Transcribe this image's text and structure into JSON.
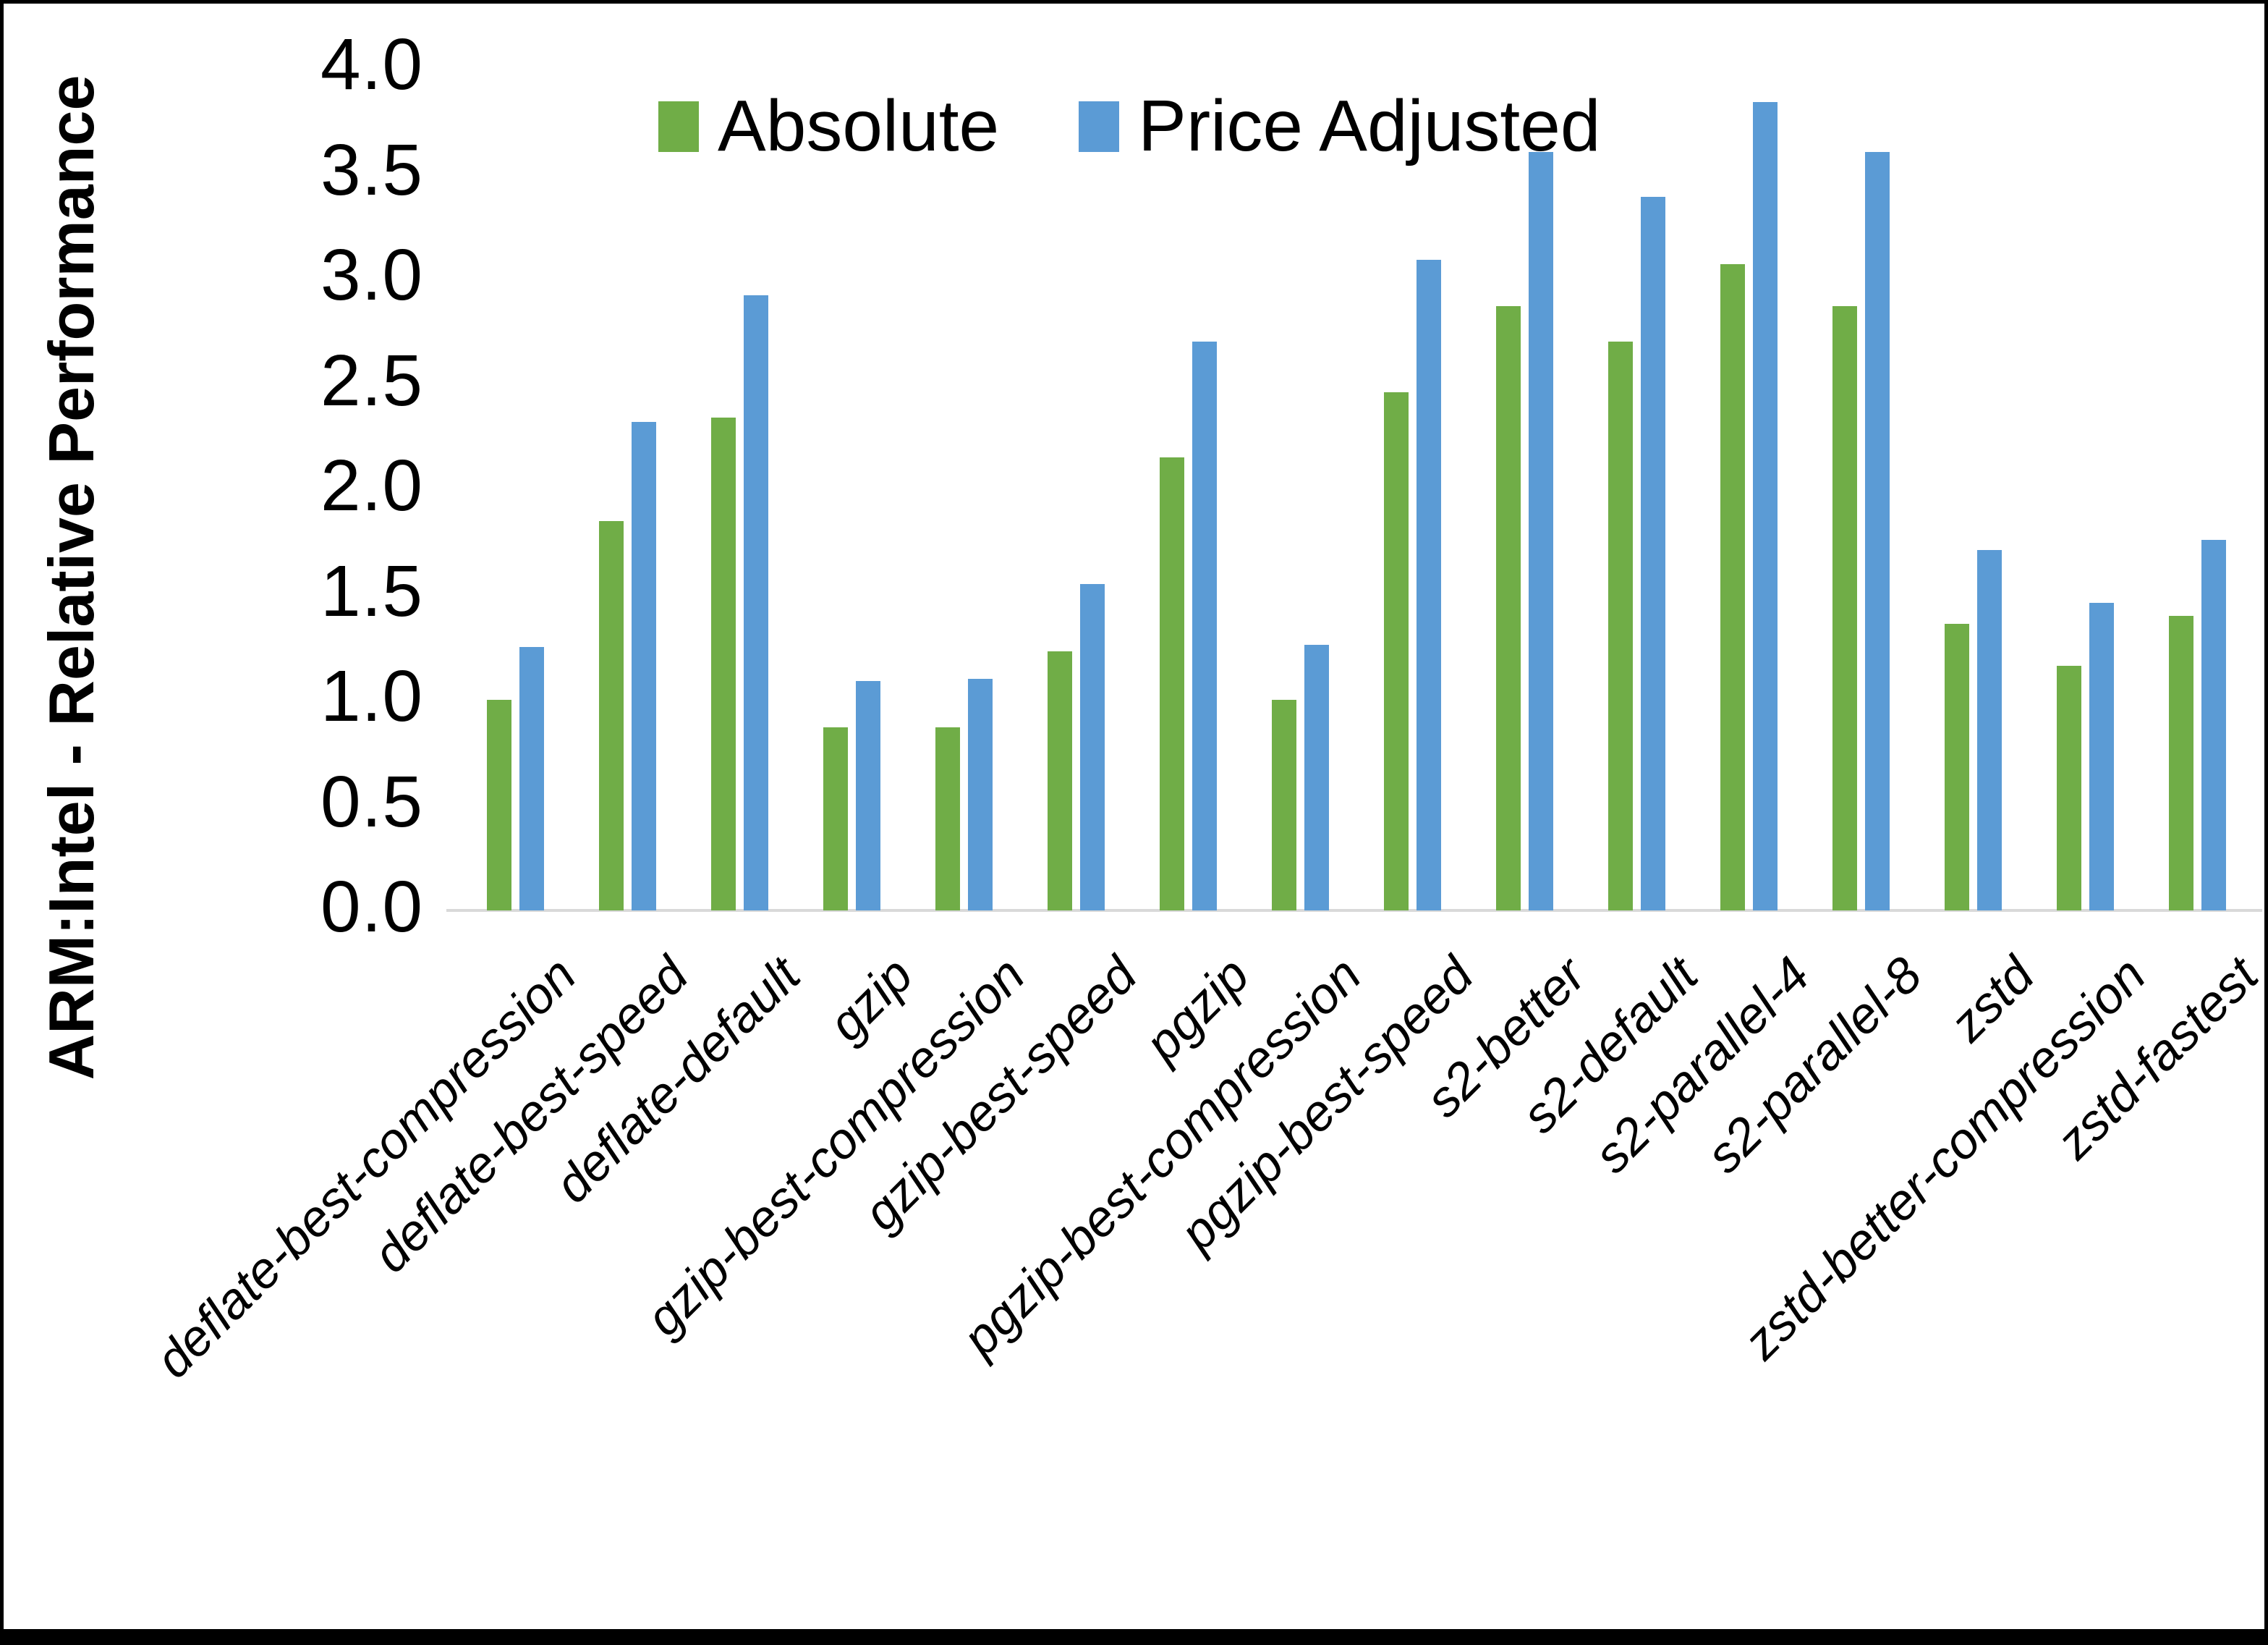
{
  "chart_data": {
    "type": "bar",
    "title": "",
    "xlabel": "",
    "ylabel": "ARM:Intel - Relative Performance",
    "ylim": [
      0.0,
      4.0
    ],
    "ytick_step": 0.5,
    "yticks": [
      "4.0",
      "3.5",
      "3.0",
      "2.5",
      "2.0",
      "1.5",
      "1.0",
      "0.5",
      "0.0"
    ],
    "grid": false,
    "legend_position": "top-center",
    "axis_line_color": "#d9d9d9",
    "categories": [
      "deflate-best-compression",
      "deflate-best-speed",
      "deflate-default",
      "gzip",
      "gzip-best-compression",
      "gzip-best-speed",
      "pgzip",
      "pgzip-best-compression",
      "pgzip-best-speed",
      "s2-better",
      "s2-default",
      "s2-parallel-4",
      "s2-parallel-8",
      "zstd",
      "zstd-better-compression",
      "zstd-fastest"
    ],
    "series": [
      {
        "name": "Absolute",
        "color": "#70AD47",
        "values": [
          1.0,
          1.85,
          2.34,
          0.87,
          0.87,
          1.23,
          2.15,
          1.0,
          2.46,
          2.87,
          2.7,
          3.07,
          2.87,
          1.36,
          1.16,
          1.4
        ]
      },
      {
        "name": "Price Adjusted",
        "color": "#5B9BD5",
        "values": [
          1.25,
          2.32,
          2.92,
          1.09,
          1.1,
          1.55,
          2.7,
          1.26,
          3.09,
          3.6,
          3.39,
          3.84,
          3.6,
          1.71,
          1.46,
          1.76
        ]
      }
    ]
  }
}
